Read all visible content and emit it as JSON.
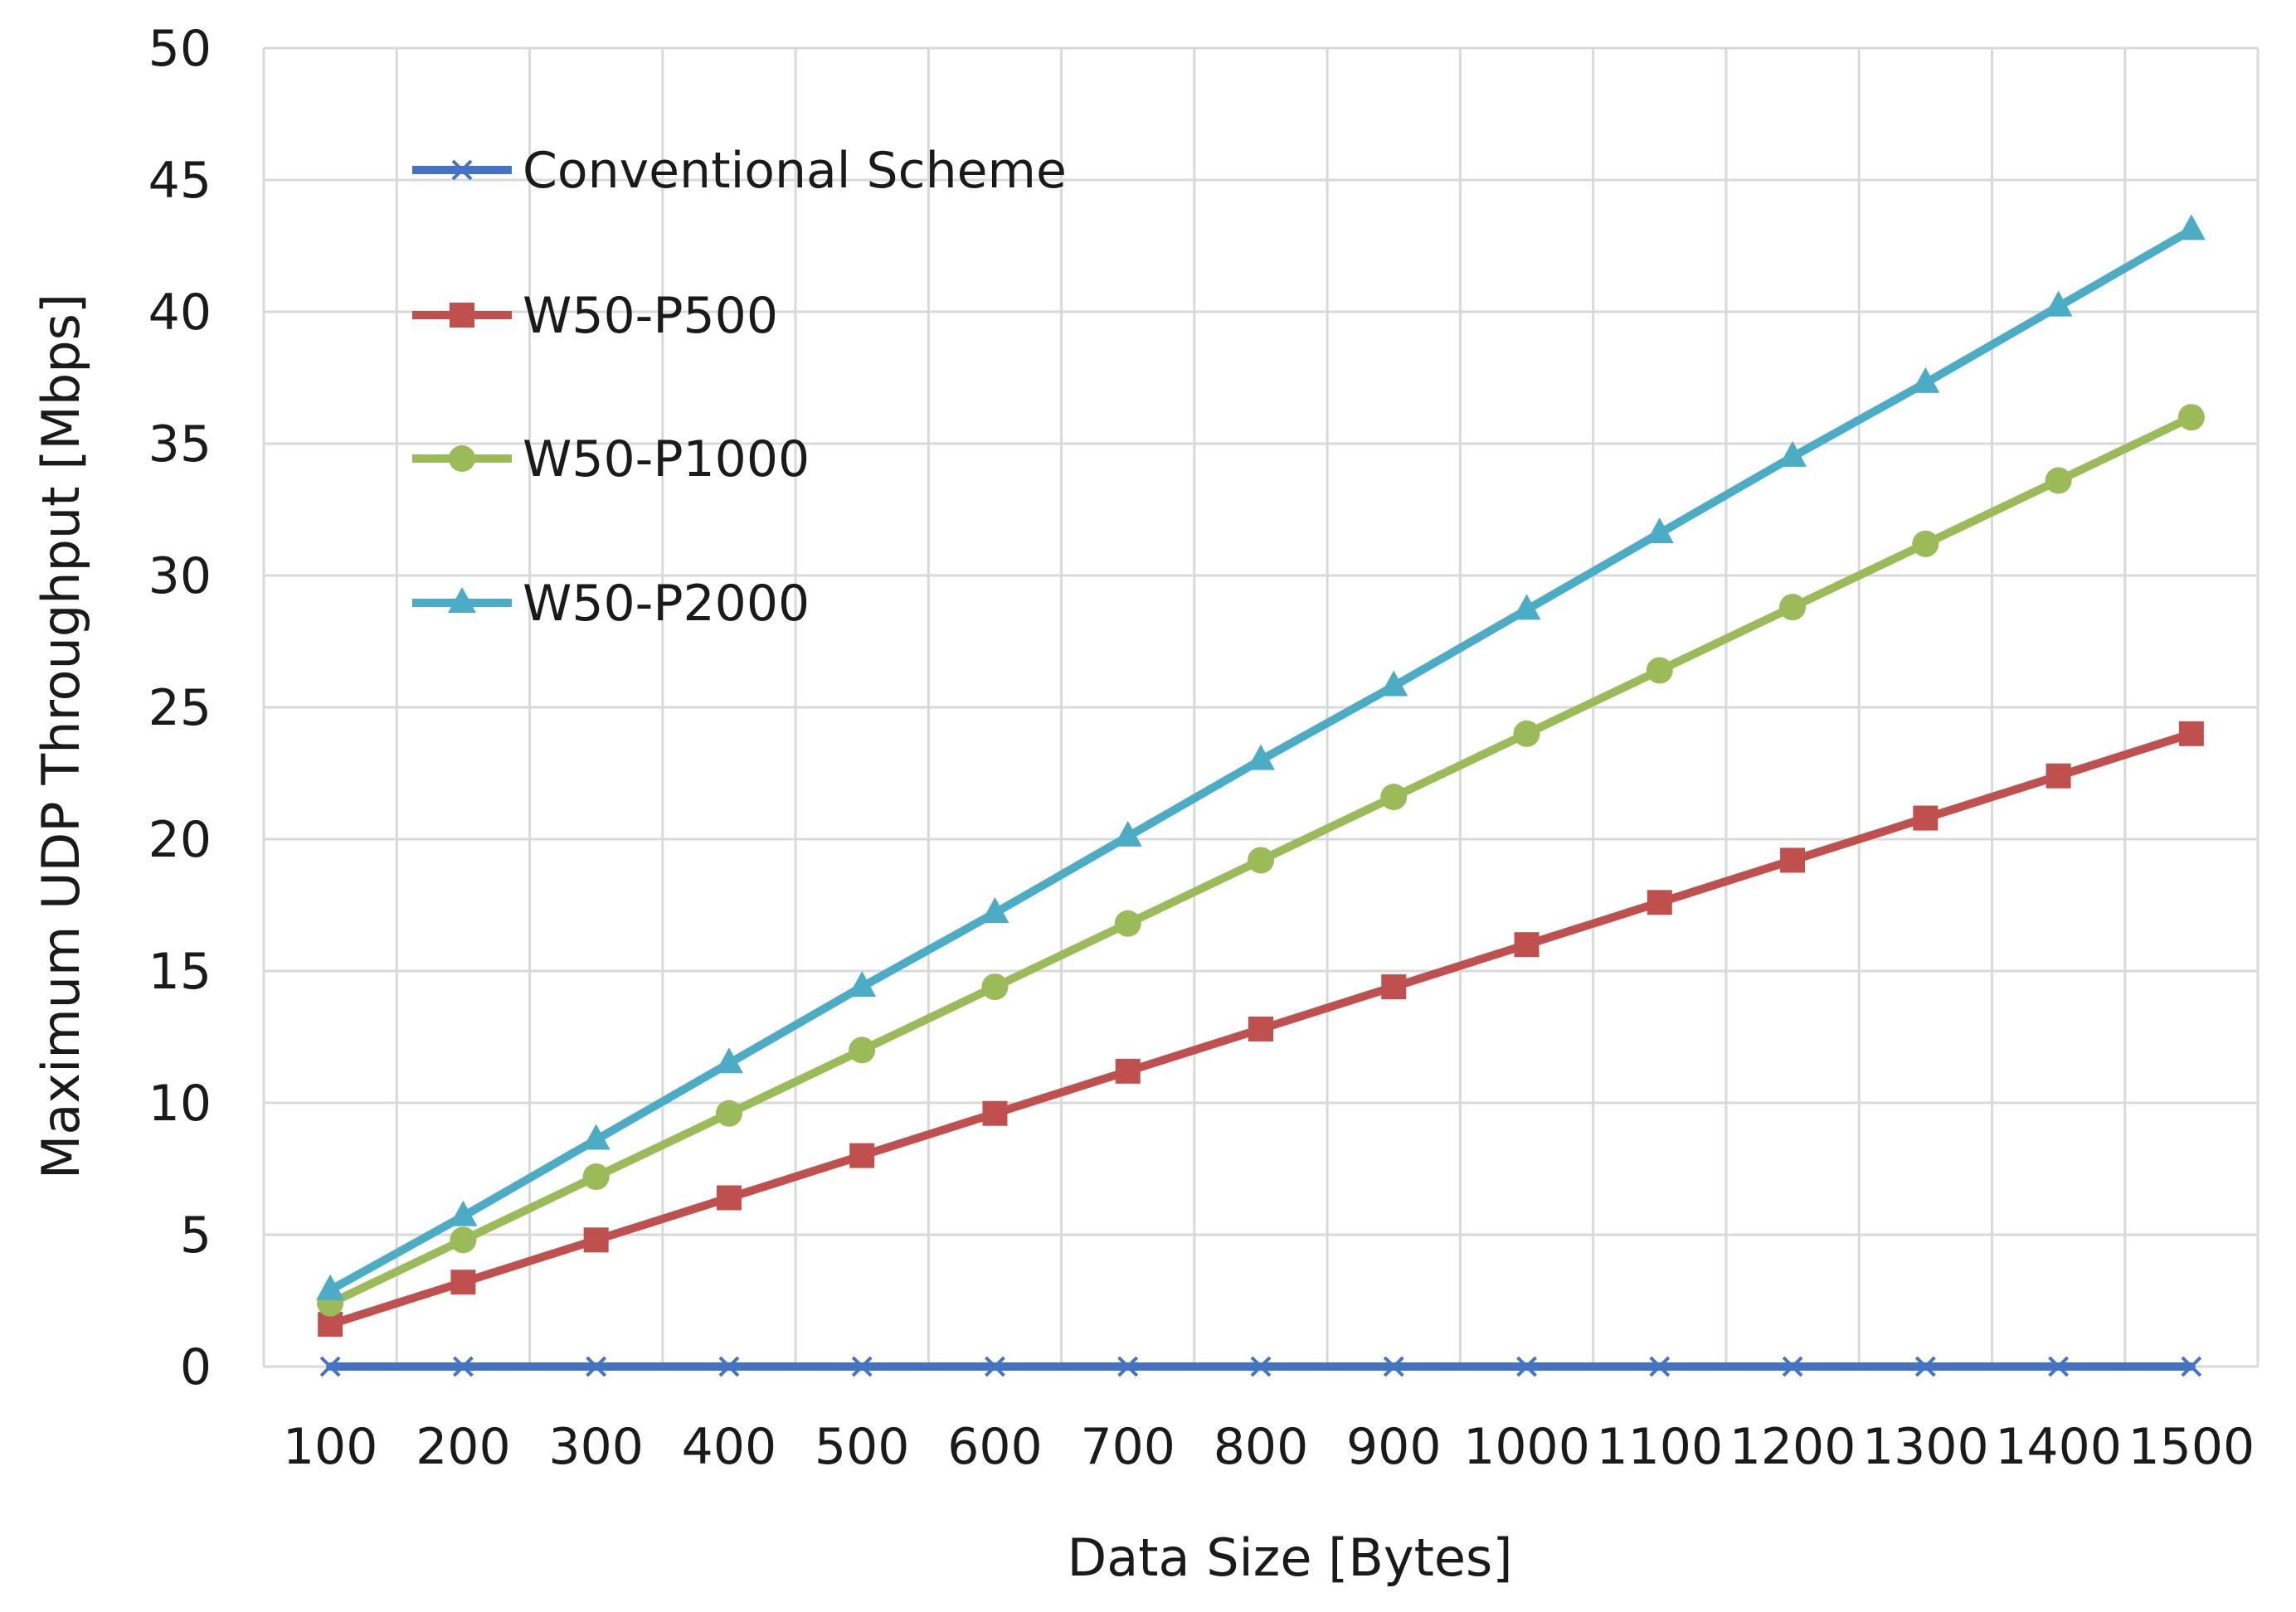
{
  "chart_data": {
    "type": "line",
    "title": "",
    "xlabel": "Data Size [Bytes]",
    "ylabel": "Maximum UDP Throughput [Mbps]",
    "categories": [
      "100",
      "200",
      "300",
      "400",
      "500",
      "600",
      "700",
      "800",
      "900",
      "1000",
      "1100",
      "1200",
      "1300",
      "1400",
      "1500"
    ],
    "ylim": [
      0,
      50
    ],
    "yticks": [
      "0",
      "5",
      "10",
      "15",
      "20",
      "25",
      "30",
      "35",
      "40",
      "45",
      "50"
    ],
    "grid": true,
    "legend_position": "top-left",
    "series": [
      {
        "name": "Conventional Scheme",
        "color": "#4472c4",
        "marker": "x",
        "values": [
          0,
          0,
          0,
          0,
          0,
          0,
          0,
          0,
          0,
          0,
          0,
          0,
          0,
          0,
          0
        ]
      },
      {
        "name": "W50-P500",
        "color": "#c0504d",
        "marker": "square",
        "values": [
          1.6,
          3.2,
          4.8,
          6.4,
          8.0,
          9.6,
          11.2,
          12.8,
          14.4,
          16.0,
          17.6,
          19.2,
          20.8,
          22.4,
          24.0
        ]
      },
      {
        "name": "W50-P1000",
        "color": "#9bbb59",
        "marker": "circle",
        "values": [
          2.4,
          4.8,
          7.2,
          9.6,
          12.0,
          14.4,
          16.8,
          19.2,
          21.6,
          24.0,
          26.4,
          28.8,
          31.2,
          33.6,
          36.0
        ]
      },
      {
        "name": "W50-P2000",
        "color": "#4bacc6",
        "marker": "triangle",
        "values": [
          2.9,
          5.7,
          8.6,
          11.5,
          14.4,
          17.2,
          20.1,
          23.0,
          25.8,
          28.7,
          31.6,
          34.5,
          37.3,
          40.2,
          43.1
        ]
      }
    ]
  }
}
